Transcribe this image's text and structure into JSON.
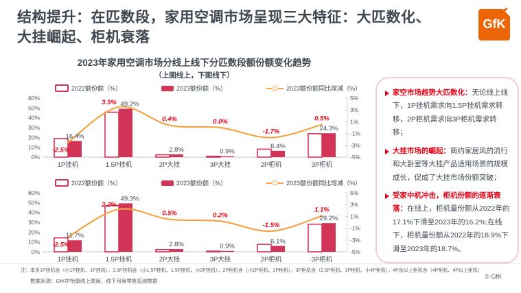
{
  "page": {
    "title_line1": "结构提升：在匹数段，家用空调市场呈现三大特征：大匹数化、",
    "title_line2": "大挂崛起、柜机衰落",
    "logo_text": "GfK",
    "copyright": "© GfK"
  },
  "chart_header": {
    "title": "2023年家用空调市场分线上线下分匹数段额份额变化趋势",
    "subtitle": "（上图线上，下图线下）"
  },
  "legend": {
    "bar2022": "2022额份额（%）",
    "bar2023": "2023额份额（%）",
    "line": "2023额份额同比增减（%）"
  },
  "chart_data": [
    {
      "type": "bar",
      "name": "线上",
      "categories": [
        "1P挂机",
        "1.5P挂机",
        "2P大挂",
        "3P大挂",
        "2P柜机",
        "3P柜机"
      ],
      "series": [
        {
          "name": "2022额份额（%）",
          "values": [
            18.9,
            45.7,
            2.4,
            0.9,
            8.1,
            23.8
          ]
        },
        {
          "name": "2023额份额（%）",
          "values": [
            16.4,
            49.2,
            2.8,
            0.9,
            6.4,
            24.3
          ]
        },
        {
          "name": "2023额份额同比增减（%）",
          "values": [
            -2.5,
            3.5,
            0.4,
            0.0,
            -1.7,
            0.5
          ]
        }
      ],
      "labels_2023": [
        "16.4%",
        "49.2%",
        "2.8%",
        "0.9%",
        "6.4%",
        "24.3%"
      ],
      "labels_change": [
        "-2.5%",
        "3.5%",
        "0.4%",
        "0.0%",
        "-1.7%",
        "0.5%"
      ],
      "left_axis": {
        "ticks": [
          "60%",
          "50%",
          "40%",
          "30%",
          "20%",
          "10%",
          "0%"
        ],
        "min": 0,
        "max": 60
      },
      "right_axis": {
        "ticks": [
          "5%",
          "3%",
          "1%",
          "-1%",
          "-3%",
          "-5%"
        ],
        "min": -5,
        "max": 5
      },
      "grid": false,
      "legend_position": "top"
    },
    {
      "type": "bar",
      "name": "线下",
      "categories": [
        "1P挂机",
        "1.5P挂机",
        "2P大挂",
        "3P大挂",
        "2P柜机",
        "3P柜机"
      ],
      "series": [
        {
          "name": "2022额份额（%）",
          "values": [
            14.2,
            47.1,
            2.3,
            0.7,
            7.6,
            28.1
          ]
        },
        {
          "name": "2023额份额（%）",
          "values": [
            11.7,
            49.3,
            2.8,
            0.9,
            6.1,
            29.2
          ]
        },
        {
          "name": "2023额份额同比增减（%）",
          "values": [
            -2.5,
            2.2,
            0.5,
            0.2,
            -1.5,
            1.1
          ]
        }
      ],
      "labels_2023": [
        "11.7%",
        "49.3%",
        "2.8%",
        "0.9%",
        "6.1%",
        "29.2%"
      ],
      "labels_change": [
        "-2.5%",
        "2.2%",
        "0.5%",
        "0.2%",
        "-1.5%",
        "1.1%"
      ],
      "left_axis": {
        "ticks": [
          "60%",
          "50%",
          "40%",
          "30%",
          "20%",
          "10%",
          "0%"
        ],
        "min": 0,
        "max": 60
      },
      "right_axis": {
        "ticks": [
          "5%",
          "3%",
          "1%",
          "-1%",
          "-3%",
          "-5%"
        ],
        "min": -5,
        "max": 5
      },
      "grid": false,
      "legend_position": "top"
    }
  ],
  "insights": {
    "bullets": [
      {
        "heading": "家空市场趋势大匹数化：",
        "body": "无论线上线下，1P挂机需求向1.5P挂机需求转移，2P柜机需求向3P柜机需求转移；"
      },
      {
        "heading": "大挂市场的崛起：",
        "body": "简约家居风的流行和大卧室等大挂产品适用场景的规模成长，促成了大挂市场份额突破；"
      },
      {
        "heading": "受家中机冲击，柜机份额的逐渐衰落：",
        "body": "在线上，柜机量份额从2022年的17.1%下滑至2023年的16.2%;在线下，柜机量份额从2022年的18.9%下滑至2023年的18.7%。"
      }
    ]
  },
  "footer": {
    "note": "注：本页1P挂机含（小1P挂机、1P挂机），1.5P挂机含（小1.5P挂机、1.5P挂机、小2P挂机），2P柜机含（小2P柜机、2P柜机），3P柜机含（2.5P柜机、3P柜机、小4P柜机），4P及以上柜机含（4P柜机、4P以上柜机）",
    "source": "数据来源：GfK中怡康线上周度、线下月度零售监测数据"
  },
  "colors": {
    "bar": "#d23558",
    "line": "#f2a444",
    "accent_red": "#e60012",
    "logo_orange": "#ec6608",
    "text_dark": "#3f4751",
    "axis_text": "#595959"
  }
}
